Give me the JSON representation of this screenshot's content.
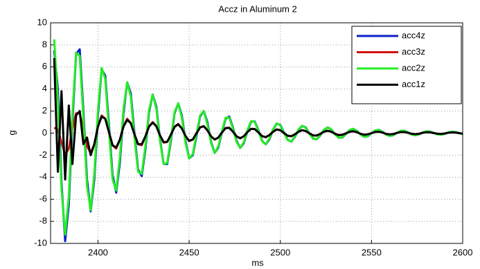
{
  "chart_data": {
    "type": "line",
    "title": "Accz in Aluminum 2",
    "x_label": "ms",
    "y_label": "g",
    "xlim": [
      2374,
      2600
    ],
    "ylim": [
      -10,
      10
    ],
    "xticks": [
      2400,
      2450,
      2500,
      2550,
      2600
    ],
    "yticks": [
      -10,
      -8,
      -6,
      -4,
      -2,
      0,
      2,
      4,
      6,
      8,
      10
    ],
    "grid": true,
    "legend": "upper right",
    "x": [
      2376,
      2378,
      2380,
      2382,
      2384,
      2386,
      2388,
      2390,
      2392,
      2394,
      2396,
      2398,
      2400,
      2402,
      2404,
      2406,
      2408,
      2410,
      2412,
      2414,
      2416,
      2418,
      2420,
      2422,
      2424,
      2426,
      2428,
      2430,
      2432,
      2434,
      2436,
      2438,
      2440,
      2442,
      2444,
      2446,
      2448,
      2450,
      2452,
      2454,
      2456,
      2458,
      2460,
      2462,
      2464,
      2466,
      2468,
      2470,
      2472,
      2474,
      2476,
      2478,
      2480,
      2482,
      2484,
      2486,
      2488,
      2490,
      2492,
      2494,
      2496,
      2498,
      2500,
      2502,
      2504,
      2506,
      2508,
      2510,
      2512,
      2514,
      2516,
      2518,
      2520,
      2522,
      2524,
      2526,
      2528,
      2530,
      2532,
      2534,
      2536,
      2538,
      2540,
      2542,
      2544,
      2546,
      2548,
      2550,
      2552,
      2554,
      2556,
      2558,
      2560,
      2562,
      2564,
      2566,
      2568,
      2570,
      2572,
      2574,
      2576,
      2578,
      2580,
      2582,
      2584,
      2586,
      2588,
      2590,
      2592,
      2594,
      2596,
      2598,
      2600
    ],
    "series": [
      {
        "name": "acc4z",
        "color": "#0a1fc8",
        "values": [
          7.5,
          4.0,
          -4.5,
          -9.8,
          -6.5,
          1.0,
          7.2,
          7.6,
          2.0,
          -4.2,
          -7.1,
          -4.2,
          1.6,
          5.8,
          5.2,
          0.8,
          -3.8,
          -5.4,
          -2.7,
          1.8,
          4.6,
          3.6,
          0.0,
          -3.3,
          -3.9,
          -1.5,
          1.9,
          3.5,
          2.4,
          -0.5,
          -2.8,
          -2.8,
          -0.7,
          1.8,
          2.7,
          1.6,
          -0.7,
          -2.3,
          -2.0,
          -0.3,
          1.5,
          2.0,
          1.0,
          -0.8,
          -1.8,
          -1.3,
          0.1,
          1.3,
          1.5,
          0.5,
          -0.7,
          -1.35,
          -0.9,
          0.2,
          1.05,
          1.05,
          0.25,
          -0.7,
          -1.02,
          -0.58,
          0.3,
          0.86,
          0.74,
          0.06,
          -0.6,
          -0.77,
          -0.34,
          0.3,
          0.66,
          0.5,
          -0.04,
          -0.5,
          -0.56,
          -0.18,
          0.3,
          0.52,
          0.32,
          -0.1,
          -0.42,
          -0.4,
          -0.08,
          0.27,
          0.39,
          0.21,
          -0.12,
          -0.34,
          -0.28,
          -0.02,
          0.24,
          0.3,
          0.12,
          -0.13,
          -0.26,
          -0.19,
          0.03,
          0.2,
          0.21,
          0.07,
          -0.12,
          -0.2,
          -0.12,
          0.04,
          0.16,
          0.15,
          0.03,
          -0.1,
          -0.15,
          -0.08,
          0.05,
          0.13,
          0.11,
          0.01,
          -0.09
        ]
      },
      {
        "name": "acc3z",
        "color": "#d41010",
        "values": [
          0.5,
          0.3,
          -0.8,
          -2.0,
          -1.4,
          0.4,
          1.8,
          1.8,
          0.4,
          -1.2,
          -1.8,
          -1.0,
          0.6,
          1.6,
          1.3,
          0.1,
          -1.1,
          -1.4,
          -0.6,
          0.6,
          1.3,
          0.9,
          -0.1,
          -1.0,
          -1.1,
          -0.3,
          0.6,
          1.0,
          0.65,
          -0.21,
          -0.86,
          -0.81,
          -0.15,
          0.58,
          0.83,
          0.43,
          -0.27,
          -0.73,
          -0.59,
          -0.02,
          0.53,
          0.64,
          0.26,
          -0.3,
          -0.59,
          -0.42,
          0.06,
          0.47,
          0.49,
          0.14,
          -0.3,
          -0.48,
          -0.29,
          0.11,
          0.4,
          0.37,
          0.06,
          -0.28,
          -0.38,
          -0.19,
          0.13,
          0.34,
          0.27,
          0.0,
          -0.24,
          -0.29,
          -0.11,
          0.14,
          0.27,
          0.19,
          -0.03,
          -0.22,
          -0.22,
          -0.06,
          0.14,
          0.22,
          0.13,
          -0.06,
          -0.19,
          -0.16,
          -0.02,
          0.13,
          0.18,
          0.08,
          -0.06,
          -0.16,
          -0.12,
          0.0,
          0.11,
          0.13,
          0.05,
          -0.07,
          -0.13,
          -0.08,
          0.02,
          0.1,
          0.1,
          0.03,
          -0.06,
          -0.1,
          -0.06,
          0.03,
          0.08,
          0.08,
          0.01,
          -0.06,
          -0.08,
          -0.04,
          0.03,
          0.07,
          0.05,
          0.0,
          -0.06
        ]
      },
      {
        "name": "acc2z",
        "color": "#22ee22",
        "values": [
          8.5,
          2.9,
          -5.1,
          -9.2,
          -5.8,
          1.7,
          7.3,
          7.0,
          1.4,
          -4.8,
          -7.0,
          -3.7,
          2.1,
          5.9,
          4.9,
          0.3,
          -4.2,
          -5.2,
          -2.2,
          2.2,
          4.6,
          3.3,
          -0.4,
          -3.5,
          -3.7,
          -1.2,
          2.1,
          3.5,
          2.2,
          -0.7,
          -2.8,
          -2.7,
          -0.5,
          1.9,
          2.7,
          1.4,
          -0.9,
          -2.3,
          -1.9,
          -0.1,
          1.6,
          2.0,
          0.8,
          -0.9,
          -1.8,
          -1.2,
          0.2,
          1.4,
          1.4,
          0.4,
          -0.8,
          -1.35,
          -0.81,
          0.3,
          1.1,
          1.01,
          0.16,
          -0.74,
          -1.01,
          -0.5,
          0.35,
          0.88,
          0.7,
          0.01,
          -0.63,
          -0.75,
          -0.29,
          0.35,
          0.67,
          0.47,
          -0.08,
          -0.53,
          -0.54,
          -0.14,
          0.33,
          0.52,
          0.3,
          -0.13,
          -0.43,
          -0.38,
          -0.05,
          0.29,
          0.39,
          0.19,
          -0.14,
          -0.34,
          -0.26,
          0.0,
          0.25,
          0.29,
          0.1,
          -0.14,
          -0.26,
          -0.17,
          0.04,
          0.2,
          0.2,
          0.05,
          -0.13,
          -0.2,
          -0.11,
          0.05,
          0.16,
          0.14,
          0.02,
          -0.11,
          -0.15,
          -0.07,
          0.06,
          0.13,
          0.1,
          0.0,
          -0.1
        ]
      },
      {
        "name": "acc1z",
        "color": "#000000",
        "values": [
          6.8,
          -3.5,
          3.8,
          -4.2,
          2.5,
          -2.8,
          1.6,
          2.0,
          -1.0,
          -0.4,
          -2.0,
          -1.0,
          0.6,
          1.5,
          1.3,
          0.1,
          -1.1,
          -1.3,
          -0.6,
          0.6,
          1.2,
          0.9,
          -0.1,
          -1.0,
          -1.0,
          -0.3,
          0.6,
          0.95,
          0.62,
          -0.2,
          -0.82,
          -0.78,
          -0.14,
          0.56,
          0.8,
          0.42,
          -0.26,
          -0.7,
          -0.57,
          -0.02,
          0.51,
          0.62,
          0.25,
          -0.29,
          -0.57,
          -0.4,
          0.06,
          0.45,
          0.47,
          0.13,
          -0.29,
          -0.46,
          -0.28,
          0.1,
          0.38,
          0.36,
          0.06,
          -0.27,
          -0.36,
          -0.18,
          0.12,
          0.33,
          0.26,
          0.0,
          -0.23,
          -0.28,
          -0.11,
          0.13,
          0.26,
          0.18,
          -0.03,
          -0.21,
          -0.21,
          -0.06,
          0.13,
          0.21,
          0.12,
          -0.06,
          -0.18,
          -0.15,
          -0.02,
          0.12,
          0.17,
          0.08,
          -0.06,
          -0.15,
          -0.11,
          0.0,
          0.1,
          0.12,
          0.05,
          -0.07,
          -0.12,
          -0.08,
          0.02,
          0.09,
          0.09,
          0.03,
          -0.06,
          -0.09,
          -0.06,
          0.03,
          0.08,
          0.07,
          0.01,
          -0.05,
          -0.07,
          -0.04,
          0.03,
          0.06,
          0.05,
          0.0,
          -0.05
        ]
      }
    ]
  }
}
